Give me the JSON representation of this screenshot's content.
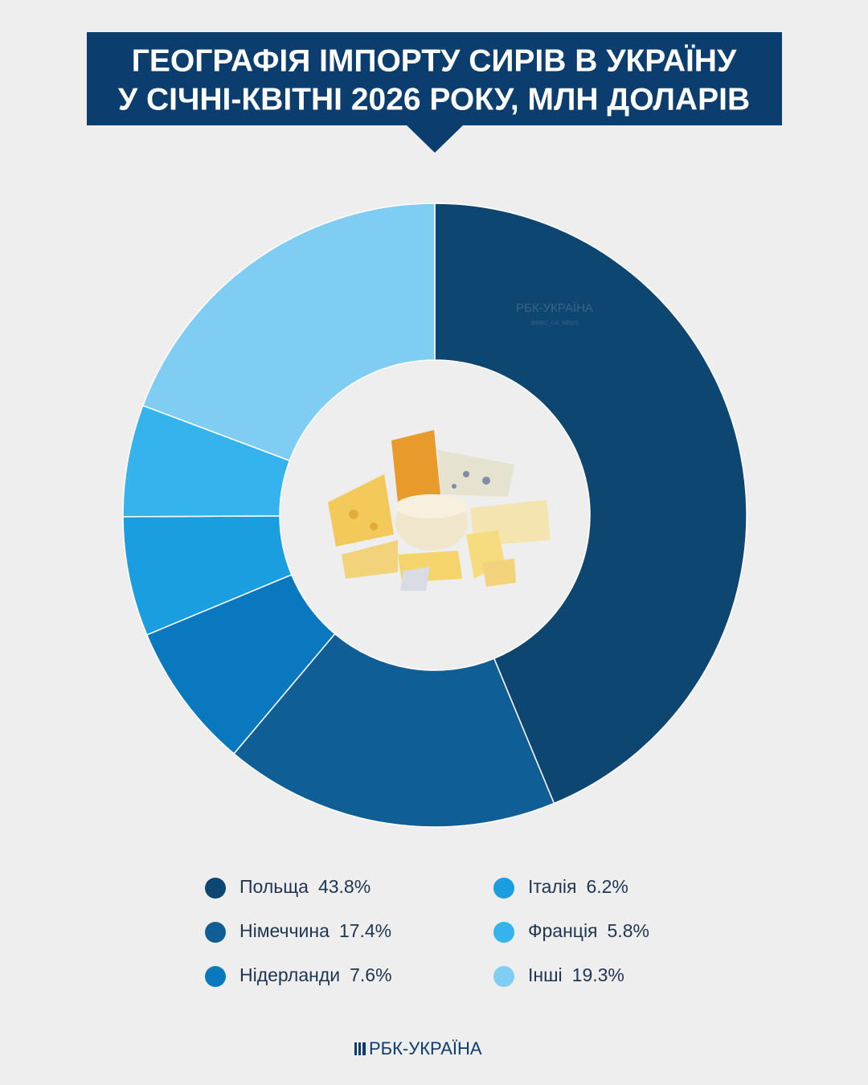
{
  "chart_data": {
    "type": "pie",
    "title": [
      "ГЕОГРАФІЯ ІМПОРТУ СИРІВ В УКРАЇНУ",
      "У СІЧНІ-КВІТНІ 2026 РОКУ, МЛН ДОЛАРІВ"
    ],
    "categories": [
      "Польща",
      "Німеччина",
      "Нідерланди",
      "Італія",
      "Франція",
      "Інші"
    ],
    "values": [
      43.8,
      17.4,
      7.6,
      6.2,
      5.8,
      19.3
    ],
    "value_labels": [
      "43.8%",
      "17.4%",
      "7.6%",
      "6.2%",
      "5.8%",
      "19.3%"
    ],
    "colors": [
      "#0d4670",
      "#0f5f96",
      "#0a78bf",
      "#1a9ee0",
      "#35b3ec",
      "#7fcdf3"
    ],
    "donut": true,
    "watermark": "РБК-УКРАЇНА",
    "watermark_handle": "@RBC_UA_NEWS",
    "footer": "РБК-УКРАЇНА"
  }
}
